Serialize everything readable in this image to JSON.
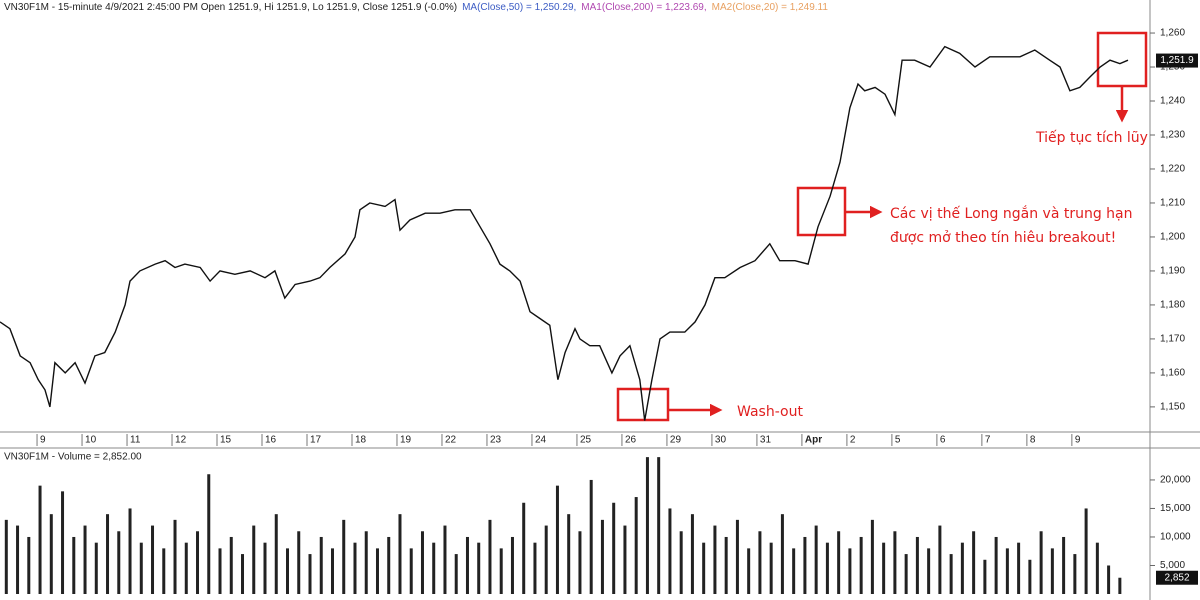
{
  "chart_data": [
    {
      "type": "line",
      "title": "VN30F1M - 15-minute 4/9/2021 2:45:00 PM Open 1251.9, Hi 1251.9, Lo 1251.9, Close 1251.9 (-0.0%)",
      "indicators": [
        {
          "label": "MA(Close,50) = 1,250.29,",
          "color": "#3c5cc4"
        },
        {
          "label": "MA1(Close,200) = 1,223.69,",
          "color": "#b048b0"
        },
        {
          "label": "MA2(Close,20) = 1,249.11",
          "color": "#e8a060"
        }
      ],
      "x": [
        -0.89,
        -0.67,
        -0.44,
        -0.22,
        -0.04,
        0.11,
        0.22,
        0.33,
        0.56,
        0.78,
        1.0,
        1.22,
        1.44,
        1.67,
        1.89,
        2.0,
        2.22,
        2.56,
        2.78,
        3.0,
        3.22,
        3.56,
        3.78,
        4.0,
        4.33,
        4.67,
        5.0,
        5.22,
        5.44,
        5.67,
        6.0,
        6.22,
        6.44,
        6.78,
        7.0,
        7.11,
        7.33,
        7.67,
        7.89,
        8.0,
        8.22,
        8.56,
        8.89,
        9.22,
        9.56,
        9.78,
        10.0,
        10.22,
        10.44,
        10.67,
        10.89,
        11.11,
        11.33,
        11.51,
        11.67,
        11.89,
        12.0,
        12.22,
        12.44,
        12.71,
        12.89,
        13.11,
        13.33,
        13.44,
        13.6,
        13.78,
        14.0,
        14.33,
        14.56,
        14.78,
        15.0,
        15.22,
        15.56,
        15.89,
        16.22,
        16.44,
        16.78,
        17.07,
        17.29,
        17.56,
        17.78,
        18.0,
        18.18,
        18.33,
        18.56,
        18.78,
        19.0,
        19.16,
        19.44,
        19.78,
        20.11,
        20.44,
        20.78,
        21.11,
        21.44,
        21.78,
        22.11,
        22.44,
        22.67,
        22.89,
        23.11,
        23.33,
        23.56,
        23.78,
        24.0,
        24.18
      ],
      "values": [
        1175,
        1173,
        1165,
        1163,
        1158,
        1155,
        1150,
        1163,
        1160,
        1163,
        1157,
        1165,
        1166,
        1172,
        1180,
        1187,
        1190,
        1192,
        1193,
        1191,
        1192,
        1191,
        1187,
        1190,
        1189,
        1190,
        1188,
        1190,
        1182,
        1186,
        1187,
        1188,
        1191,
        1195,
        1200,
        1208,
        1210,
        1209,
        1211,
        1202,
        1205,
        1207,
        1207,
        1208,
        1208,
        1203,
        1198,
        1192,
        1190,
        1187,
        1178,
        1176,
        1174,
        1158,
        1166,
        1173,
        1170,
        1168,
        1168,
        1160,
        1165,
        1168,
        1158,
        1146,
        1158,
        1170,
        1172,
        1172,
        1175,
        1180,
        1188,
        1188,
        1191,
        1193,
        1198,
        1193,
        1193,
        1192,
        1203,
        1212,
        1222,
        1238,
        1245,
        1243,
        1244,
        1242,
        1236,
        1252,
        1252,
        1250,
        1256,
        1254,
        1250,
        1253,
        1253,
        1253,
        1255,
        1252,
        1250,
        1243,
        1244,
        1247,
        1250,
        1252,
        1251,
        1252
      ],
      "color": "#111111",
      "xlim": [
        -0.89,
        24.67
      ],
      "xticks": [
        {
          "value": 0,
          "label": "9"
        },
        {
          "value": 1,
          "label": "10"
        },
        {
          "value": 2,
          "label": "11"
        },
        {
          "value": 3,
          "label": "12"
        },
        {
          "value": 4,
          "label": "15"
        },
        {
          "value": 5,
          "label": "16"
        },
        {
          "value": 6,
          "label": "17"
        },
        {
          "value": 7,
          "label": "18"
        },
        {
          "value": 8,
          "label": "19"
        },
        {
          "value": 9,
          "label": "22"
        },
        {
          "value": 10,
          "label": "23"
        },
        {
          "value": 11,
          "label": "24"
        },
        {
          "value": 12,
          "label": "25"
        },
        {
          "value": 13,
          "label": "26"
        },
        {
          "value": 14,
          "label": "29"
        },
        {
          "value": 15,
          "label": "30"
        },
        {
          "value": 16,
          "label": "31"
        },
        {
          "value": 17,
          "label": "Apr"
        },
        {
          "value": 18,
          "label": "2"
        },
        {
          "value": 19,
          "label": "5"
        },
        {
          "value": 20,
          "label": "6"
        },
        {
          "value": 21,
          "label": "7"
        },
        {
          "value": 22,
          "label": "8"
        },
        {
          "value": 23,
          "label": "9"
        }
      ],
      "ylim": [
        1143.2,
        1265.6
      ],
      "yticks": [
        {
          "value": 1150,
          "label": "1,150"
        },
        {
          "value": 1160,
          "label": "1,160"
        },
        {
          "value": 1170,
          "label": "1,170"
        },
        {
          "value": 1180,
          "label": "1,180"
        },
        {
          "value": 1190,
          "label": "1,190"
        },
        {
          "value": 1200,
          "label": "1,200"
        },
        {
          "value": 1210,
          "label": "1,210"
        },
        {
          "value": 1220,
          "label": "1,220"
        },
        {
          "value": 1230,
          "label": "1,230"
        },
        {
          "value": 1240,
          "label": "1,240"
        },
        {
          "value": 1250,
          "label": "1,250"
        },
        {
          "value": 1260,
          "label": "1,260"
        }
      ],
      "last": {
        "value": 1251.9,
        "label": "1,251.9"
      },
      "annotations": [
        "Wash-out",
        "Các vị thế Long ngắn và trung hạn",
        "được mở theo tín hiêu breakout!",
        "Tiếp tục tích lũy"
      ]
    },
    {
      "type": "bar",
      "title": "VN30F1M - Volume = 2,852.00",
      "x": [
        -0.75,
        -0.5,
        -0.25,
        0,
        0.25,
        0.5,
        0.75,
        1,
        1.25,
        1.5,
        1.75,
        2,
        2.25,
        2.5,
        2.75,
        3,
        3.25,
        3.5,
        3.75,
        4,
        4.25,
        4.5,
        4.75,
        5,
        5.25,
        5.5,
        5.75,
        6,
        6.25,
        6.5,
        6.75,
        7,
        7.25,
        7.5,
        7.75,
        8,
        8.25,
        8.5,
        8.75,
        9,
        9.25,
        9.5,
        9.75,
        10,
        10.25,
        10.5,
        10.75,
        11,
        11.25,
        11.5,
        11.75,
        12,
        12.25,
        12.5,
        12.75,
        13,
        13.25,
        13.5,
        13.75,
        14,
        14.25,
        14.5,
        14.75,
        15,
        15.25,
        15.5,
        15.75,
        16,
        16.25,
        16.5,
        16.75,
        17,
        17.25,
        17.5,
        17.75,
        18,
        18.25,
        18.5,
        18.75,
        19,
        19.25,
        19.5,
        19.75,
        20,
        20.25,
        20.5,
        20.75,
        21,
        21.25,
        21.5,
        21.75,
        22,
        22.25,
        22.5,
        22.75,
        23,
        23.25,
        23.5,
        23.75,
        24
      ],
      "values": [
        13000,
        12000,
        10000,
        19000,
        14000,
        18000,
        10000,
        12000,
        9000,
        14000,
        11000,
        15000,
        9000,
        12000,
        8000,
        13000,
        9000,
        11000,
        21000,
        8000,
        10000,
        7000,
        12000,
        9000,
        14000,
        8000,
        11000,
        7000,
        10000,
        8000,
        13000,
        9000,
        11000,
        8000,
        10000,
        14000,
        8000,
        11000,
        9000,
        12000,
        7000,
        10000,
        9000,
        13000,
        8000,
        10000,
        16000,
        9000,
        12000,
        19000,
        14000,
        11000,
        20000,
        13000,
        16000,
        12000,
        17000,
        24000,
        24000,
        15000,
        11000,
        14000,
        9000,
        12000,
        10000,
        13000,
        8000,
        11000,
        9000,
        14000,
        8000,
        10000,
        12000,
        9000,
        11000,
        8000,
        10000,
        13000,
        9000,
        11000,
        7000,
        10000,
        8000,
        12000,
        7000,
        9000,
        11000,
        6000,
        10000,
        8000,
        9000,
        6000,
        11000,
        8000,
        10000,
        7000,
        15000,
        9000,
        5000,
        2852
      ],
      "color": "#222222",
      "xlim": [
        -0.89,
        24.67
      ],
      "ylim": [
        0,
        24900
      ],
      "yticks": [
        {
          "value": 5000,
          "label": "5,000"
        },
        {
          "value": 10000,
          "label": "10,000"
        },
        {
          "value": 15000,
          "label": "15,000"
        },
        {
          "value": 20000,
          "label": "20,000"
        }
      ],
      "last": {
        "value": 2852,
        "label": "2,852"
      }
    }
  ]
}
